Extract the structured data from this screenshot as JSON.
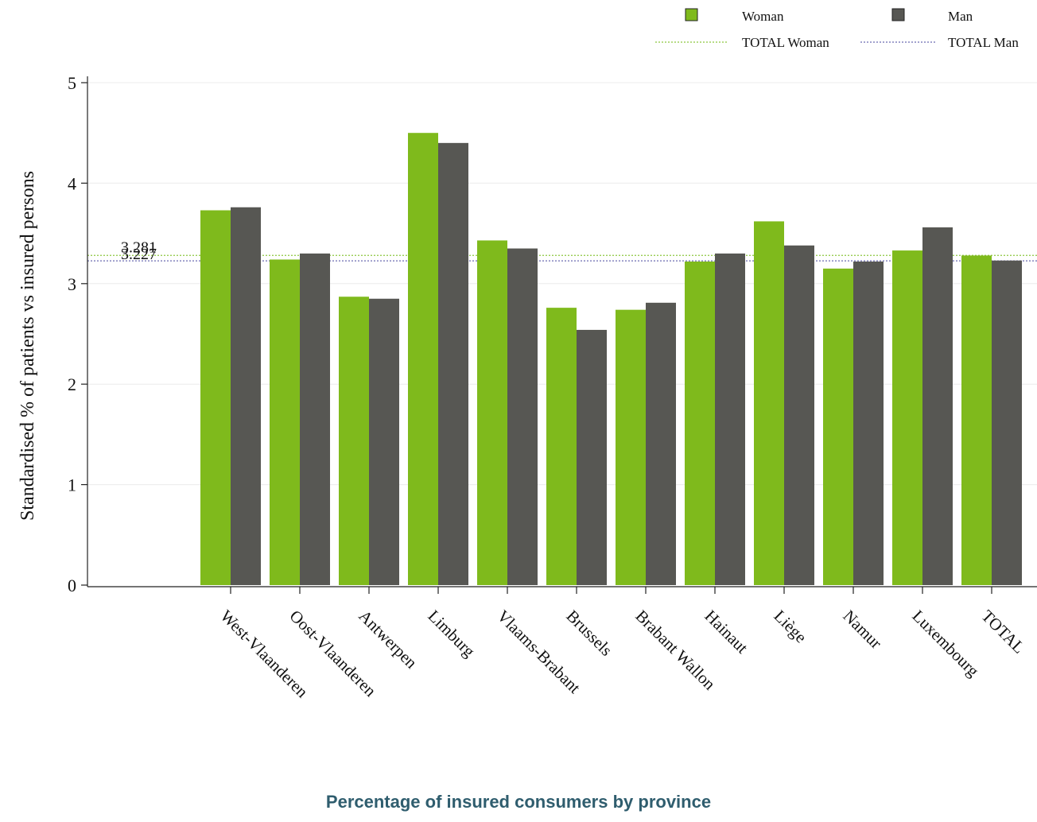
{
  "chart_data": {
    "type": "bar",
    "title": "Percentage of insured consumers by province",
    "xlabel": "",
    "ylabel": "Standardised % of patients vs insured persons",
    "ylim": [
      0,
      5
    ],
    "yticks": [
      "0",
      "1",
      "2",
      "3",
      "4",
      "5"
    ],
    "grid": true,
    "legend_position": "top-right",
    "categories": [
      "West-Vlaanderen",
      "Oost-Vlaanderen",
      "Antwerpen",
      "Limburg",
      "Vlaams-Brabant",
      "Brussels",
      "Brabant Wallon",
      "Hainaut",
      "Liège",
      "Namur",
      "Luxembourg",
      "TOTAL"
    ],
    "series": [
      {
        "name": "Woman",
        "color": "#7fba1c",
        "values": [
          3.73,
          3.24,
          2.87,
          4.5,
          3.43,
          2.76,
          2.74,
          3.22,
          3.62,
          3.15,
          3.33,
          3.28
        ]
      },
      {
        "name": "Man",
        "color": "#575753",
        "values": [
          3.76,
          3.3,
          2.85,
          4.4,
          3.35,
          2.54,
          2.81,
          3.3,
          3.38,
          3.22,
          3.56,
          3.23
        ]
      }
    ],
    "reference_lines": [
      {
        "name": "TOTAL Woman",
        "value": 3.281,
        "label": "3.281",
        "color": "#8cc63f"
      },
      {
        "name": "TOTAL Man",
        "value": 3.227,
        "label": "3.227",
        "color": "#6b6bb0"
      }
    ]
  }
}
